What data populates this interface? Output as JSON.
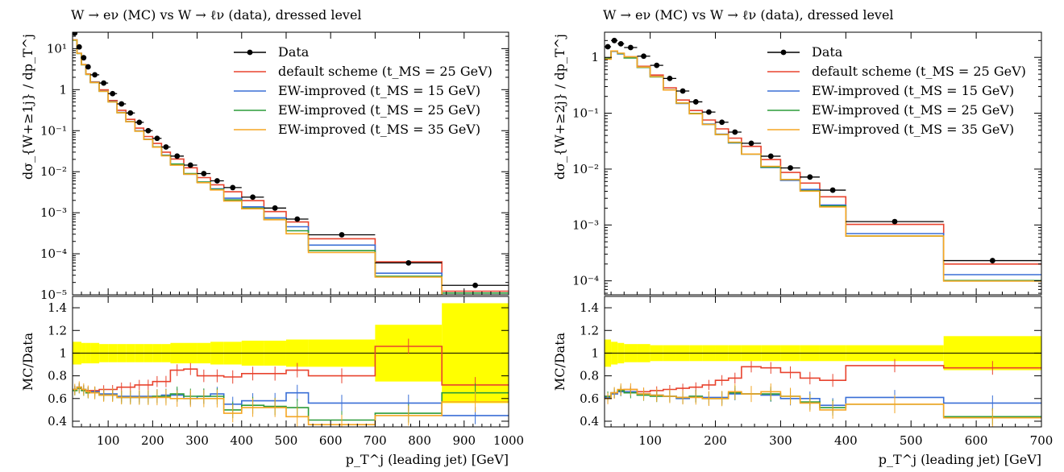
{
  "chart_data": [
    {
      "type": "line",
      "title": "W → eν (MC) vs W → ℓν (data), dressed level",
      "ylabel": "dσ_{W+≥1j} / dp_T^j",
      "ratio_ylabel": "MC/Data",
      "xlabel": "p_T^j (leading jet) [GeV]",
      "x_ticks": [
        "100",
        "200",
        "300",
        "400",
        "500",
        "600",
        "700",
        "800",
        "900",
        "1000"
      ],
      "y_ticks": [
        "10⁻⁵",
        "10⁻⁴",
        "10⁻³",
        "10⁻²",
        "10⁻¹",
        "1",
        "10¹"
      ],
      "ratio_ticks": [
        "0.4",
        "0.6",
        "0.8",
        "1",
        "1.2",
        "1.4"
      ],
      "xlim": [
        20,
        1000
      ],
      "ylim_log10": [
        -5,
        1.4
      ],
      "ratio_ylim": [
        0.35,
        1.5
      ],
      "legend_position": "top-right",
      "bins": [
        20,
        30,
        40,
        50,
        60,
        80,
        100,
        120,
        140,
        160,
        180,
        200,
        220,
        240,
        270,
        300,
        330,
        360,
        400,
        450,
        500,
        550,
        700,
        850,
        1000
      ],
      "data": [
        24,
        11,
        6,
        3.6,
        2.3,
        1.45,
        0.8,
        0.45,
        0.27,
        0.16,
        0.1,
        0.065,
        0.04,
        0.024,
        0.0145,
        0.009,
        0.006,
        0.0041,
        0.0024,
        0.0013,
        0.0007,
        0.00029,
        6e-05,
        1.7e-05
      ],
      "band": [
        0.1,
        0.1,
        0.09,
        0.09,
        0.09,
        0.08,
        0.08,
        0.08,
        0.08,
        0.08,
        0.08,
        0.08,
        0.08,
        0.09,
        0.09,
        0.09,
        0.1,
        0.1,
        0.11,
        0.11,
        0.12,
        0.12,
        0.25,
        0.44
      ],
      "series": [
        {
          "name": "Data",
          "color": "#000000"
        },
        {
          "name": "default scheme (t_MS = 25 GeV)",
          "color": "#e8432e",
          "ratio": [
            0.68,
            0.7,
            0.68,
            0.67,
            0.67,
            0.68,
            0.68,
            0.7,
            0.7,
            0.72,
            0.72,
            0.75,
            0.75,
            0.85,
            0.86,
            0.8,
            0.8,
            0.79,
            0.82,
            0.82,
            0.85,
            0.8,
            1.06,
            0.72
          ]
        },
        {
          "name": "EW-improved (t_MS = 15 GeV)",
          "color": "#3a6fd6",
          "ratio": [
            0.68,
            0.7,
            0.68,
            0.66,
            0.66,
            0.64,
            0.64,
            0.62,
            0.62,
            0.62,
            0.62,
            0.62,
            0.63,
            0.63,
            0.6,
            0.62,
            0.64,
            0.55,
            0.58,
            0.58,
            0.65,
            0.56,
            0.56,
            0.45
          ]
        },
        {
          "name": "EW-improved (t_MS = 25 GeV)",
          "color": "#2b9b39",
          "ratio": [
            0.67,
            0.69,
            0.67,
            0.65,
            0.65,
            0.63,
            0.63,
            0.61,
            0.61,
            0.61,
            0.61,
            0.62,
            0.62,
            0.64,
            0.62,
            0.62,
            0.62,
            0.5,
            0.54,
            0.53,
            0.52,
            0.41,
            0.47,
            0.65
          ]
        },
        {
          "name": "EW-improved (t_MS = 35 GeV)",
          "color": "#f5a623",
          "ratio": [
            0.68,
            0.7,
            0.68,
            0.66,
            0.65,
            0.63,
            0.63,
            0.61,
            0.61,
            0.61,
            0.61,
            0.61,
            0.61,
            0.6,
            0.6,
            0.6,
            0.6,
            0.47,
            0.52,
            0.52,
            0.44,
            0.37,
            0.45,
            0.57
          ]
        }
      ]
    },
    {
      "type": "line",
      "title": "W → eν (MC) vs W → ℓν (data), dressed level",
      "ylabel": "dσ_{W+≥2j} / dp_T^j",
      "ratio_ylabel": "MC/Data",
      "xlabel": "p_T^j (leading jet) [GeV]",
      "x_ticks": [
        "100",
        "200",
        "300",
        "400",
        "500",
        "600",
        "700"
      ],
      "y_ticks": [
        "10⁻⁴",
        "10⁻³",
        "10⁻²",
        "10⁻¹",
        "1"
      ],
      "ratio_ticks": [
        "0.4",
        "0.6",
        "0.8",
        "1",
        "1.2",
        "1.4"
      ],
      "xlim": [
        30,
        700
      ],
      "ylim_log10": [
        -4.25,
        0.45
      ],
      "ratio_ylim": [
        0.35,
        1.5
      ],
      "legend_position": "top-right",
      "bins": [
        30,
        40,
        50,
        60,
        80,
        100,
        120,
        140,
        160,
        180,
        200,
        220,
        240,
        270,
        300,
        330,
        360,
        400,
        550,
        700
      ],
      "data": [
        1.55,
        2.0,
        1.75,
        1.5,
        1.05,
        0.72,
        0.42,
        0.25,
        0.16,
        0.105,
        0.069,
        0.046,
        0.029,
        0.017,
        0.0105,
        0.0072,
        0.0042,
        0.00115,
        0.00023
      ],
      "band": [
        0.12,
        0.1,
        0.09,
        0.08,
        0.08,
        0.07,
        0.07,
        0.07,
        0.07,
        0.07,
        0.07,
        0.07,
        0.07,
        0.07,
        0.07,
        0.07,
        0.07,
        0.07,
        0.15
      ],
      "series": [
        {
          "name": "Data",
          "color": "#000000"
        },
        {
          "name": "default scheme (t_MS = 25 GeV)",
          "color": "#e8432e",
          "ratio": [
            0.62,
            0.65,
            0.67,
            0.68,
            0.66,
            0.67,
            0.68,
            0.69,
            0.7,
            0.72,
            0.76,
            0.78,
            0.88,
            0.87,
            0.83,
            0.78,
            0.76,
            0.89,
            0.87
          ]
        },
        {
          "name": "EW-improved (t_MS = 15 GeV)",
          "color": "#3a6fd6",
          "ratio": [
            0.61,
            0.64,
            0.66,
            0.66,
            0.64,
            0.63,
            0.62,
            0.6,
            0.62,
            0.61,
            0.61,
            0.64,
            0.64,
            0.63,
            0.6,
            0.6,
            0.54,
            0.61,
            0.56
          ]
        },
        {
          "name": "EW-improved (t_MS = 25 GeV)",
          "color": "#2b9b39",
          "ratio": [
            0.62,
            0.65,
            0.67,
            0.65,
            0.63,
            0.62,
            0.62,
            0.61,
            0.62,
            0.6,
            0.6,
            0.65,
            0.64,
            0.64,
            0.62,
            0.57,
            0.52,
            0.55,
            0.44
          ]
        },
        {
          "name": "EW-improved (t_MS = 35 GeV)",
          "color": "#f5a623",
          "ratio": [
            0.6,
            0.65,
            0.68,
            0.68,
            0.64,
            0.63,
            0.62,
            0.61,
            0.61,
            0.6,
            0.6,
            0.66,
            0.64,
            0.66,
            0.62,
            0.56,
            0.5,
            0.55,
            0.43
          ]
        }
      ]
    }
  ]
}
